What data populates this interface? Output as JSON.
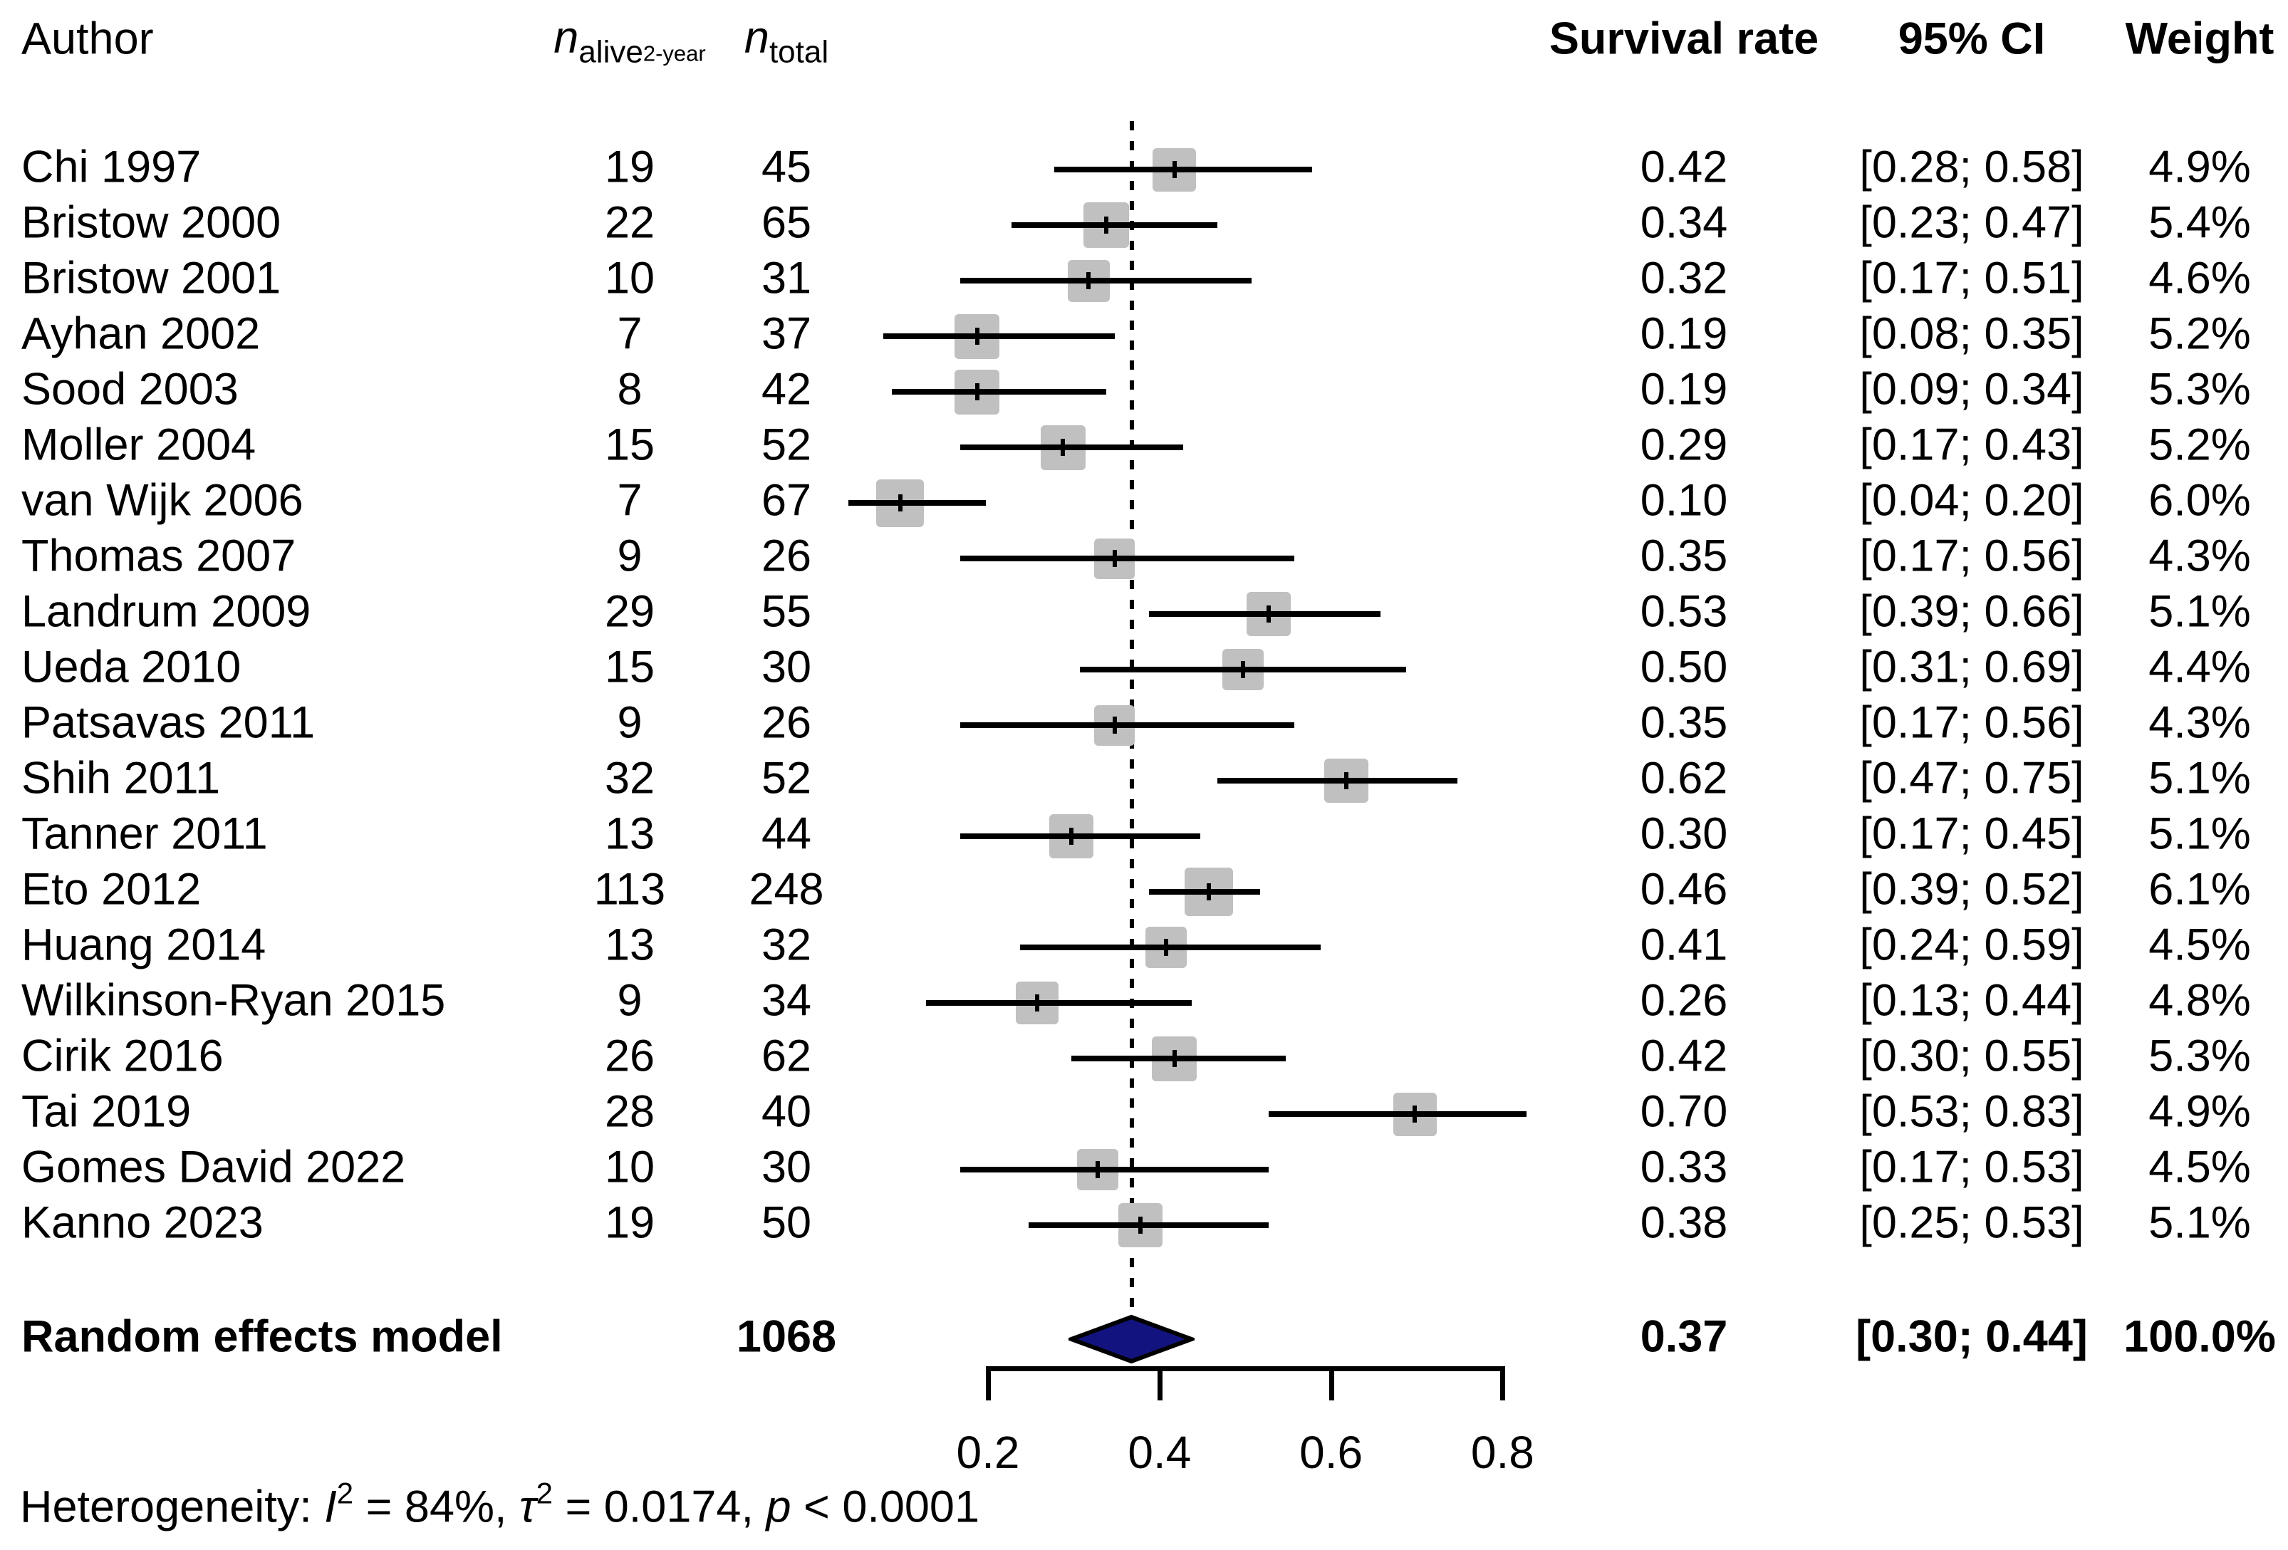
{
  "columns": {
    "author": "Author",
    "n_alive": {
      "base": "n",
      "sub": "alive",
      "subsub": "2-year"
    },
    "n_total": {
      "base": "n",
      "sub": "total"
    },
    "survival_rate": "Survival rate",
    "ci": "95% CI",
    "weight": "Weight"
  },
  "summary_row": {
    "label": "Random effects model",
    "n_total": "1068",
    "rate": "0.37",
    "ci": "[0.30; 0.44]",
    "weight": "100.0%"
  },
  "heterogeneity": {
    "prefix": "Heterogeneity: ",
    "i_sym": "I",
    "i_sup": "2",
    "i_rest": " = 84%, ",
    "tau_sym": "τ",
    "tau_sup": "2",
    "tau_rest": " = 0.0174, ",
    "p_sym": "p",
    "p_rest": " < 0.0001"
  },
  "colors": {
    "square": "#c0c0c0",
    "diamond_fill": "#131380",
    "diamond_stroke": "#000000",
    "line": "#000000",
    "text": "#000000"
  },
  "chart_data": {
    "type": "forest",
    "title": "",
    "xlabel": "",
    "axis": {
      "ticks": [
        0.2,
        0.4,
        0.6,
        0.8
      ],
      "tick_labels": [
        "0.2",
        "0.4",
        "0.6",
        "0.8"
      ],
      "plotted_range": [
        0.04,
        0.83
      ]
    },
    "reference_line_value": 0.37,
    "studies": [
      {
        "author": "Chi 1997",
        "n_alive": "19",
        "n_total": "45",
        "rate": 0.42,
        "ci_low": 0.28,
        "ci_high": 0.58,
        "rate_text": "0.42",
        "ci_text": "[0.28; 0.58]",
        "weight": 4.9,
        "weight_text": "4.9%"
      },
      {
        "author": "Bristow 2000",
        "n_alive": "22",
        "n_total": "65",
        "rate": 0.34,
        "ci_low": 0.23,
        "ci_high": 0.47,
        "rate_text": "0.34",
        "ci_text": "[0.23; 0.47]",
        "weight": 5.4,
        "weight_text": "5.4%"
      },
      {
        "author": "Bristow 2001",
        "n_alive": "10",
        "n_total": "31",
        "rate": 0.32,
        "ci_low": 0.17,
        "ci_high": 0.51,
        "rate_text": "0.32",
        "ci_text": "[0.17; 0.51]",
        "weight": 4.6,
        "weight_text": "4.6%"
      },
      {
        "author": "Ayhan 2002",
        "n_alive": "7",
        "n_total": "37",
        "rate": 0.19,
        "ci_low": 0.08,
        "ci_high": 0.35,
        "rate_text": "0.19",
        "ci_text": "[0.08; 0.35]",
        "weight": 5.2,
        "weight_text": "5.2%"
      },
      {
        "author": "Sood 2003",
        "n_alive": "8",
        "n_total": "42",
        "rate": 0.19,
        "ci_low": 0.09,
        "ci_high": 0.34,
        "rate_text": "0.19",
        "ci_text": "[0.09; 0.34]",
        "weight": 5.3,
        "weight_text": "5.3%"
      },
      {
        "author": "Moller 2004",
        "n_alive": "15",
        "n_total": "52",
        "rate": 0.29,
        "ci_low": 0.17,
        "ci_high": 0.43,
        "rate_text": "0.29",
        "ci_text": "[0.17; 0.43]",
        "weight": 5.2,
        "weight_text": "5.2%"
      },
      {
        "author": "van Wijk 2006",
        "n_alive": "7",
        "n_total": "67",
        "rate": 0.1,
        "ci_low": 0.04,
        "ci_high": 0.2,
        "rate_text": "0.10",
        "ci_text": "[0.04; 0.20]",
        "weight": 6.0,
        "weight_text": "6.0%"
      },
      {
        "author": "Thomas 2007",
        "n_alive": "9",
        "n_total": "26",
        "rate": 0.35,
        "ci_low": 0.17,
        "ci_high": 0.56,
        "rate_text": "0.35",
        "ci_text": "[0.17; 0.56]",
        "weight": 4.3,
        "weight_text": "4.3%"
      },
      {
        "author": "Landrum 2009",
        "n_alive": "29",
        "n_total": "55",
        "rate": 0.53,
        "ci_low": 0.39,
        "ci_high": 0.66,
        "rate_text": "0.53",
        "ci_text": "[0.39; 0.66]",
        "weight": 5.1,
        "weight_text": "5.1%"
      },
      {
        "author": "Ueda 2010",
        "n_alive": "15",
        "n_total": "30",
        "rate": 0.5,
        "ci_low": 0.31,
        "ci_high": 0.69,
        "rate_text": "0.50",
        "ci_text": "[0.31; 0.69]",
        "weight": 4.4,
        "weight_text": "4.4%"
      },
      {
        "author": "Patsavas 2011",
        "n_alive": "9",
        "n_total": "26",
        "rate": 0.35,
        "ci_low": 0.17,
        "ci_high": 0.56,
        "rate_text": "0.35",
        "ci_text": "[0.17; 0.56]",
        "weight": 4.3,
        "weight_text": "4.3%"
      },
      {
        "author": "Shih 2011",
        "n_alive": "32",
        "n_total": "52",
        "rate": 0.62,
        "ci_low": 0.47,
        "ci_high": 0.75,
        "rate_text": "0.62",
        "ci_text": "[0.47; 0.75]",
        "weight": 5.1,
        "weight_text": "5.1%"
      },
      {
        "author": "Tanner 2011",
        "n_alive": "13",
        "n_total": "44",
        "rate": 0.3,
        "ci_low": 0.17,
        "ci_high": 0.45,
        "rate_text": "0.30",
        "ci_text": "[0.17; 0.45]",
        "weight": 5.1,
        "weight_text": "5.1%"
      },
      {
        "author": "Eto 2012",
        "n_alive": "113",
        "n_total": "248",
        "rate": 0.46,
        "ci_low": 0.39,
        "ci_high": 0.52,
        "rate_text": "0.46",
        "ci_text": "[0.39; 0.52]",
        "weight": 6.1,
        "weight_text": "6.1%"
      },
      {
        "author": "Huang 2014",
        "n_alive": "13",
        "n_total": "32",
        "rate": 0.41,
        "ci_low": 0.24,
        "ci_high": 0.59,
        "rate_text": "0.41",
        "ci_text": "[0.24; 0.59]",
        "weight": 4.5,
        "weight_text": "4.5%"
      },
      {
        "author": "Wilkinson-Ryan 2015",
        "n_alive": "9",
        "n_total": "34",
        "rate": 0.26,
        "ci_low": 0.13,
        "ci_high": 0.44,
        "rate_text": "0.26",
        "ci_text": "[0.13; 0.44]",
        "weight": 4.8,
        "weight_text": "4.8%"
      },
      {
        "author": "Cirik 2016",
        "n_alive": "26",
        "n_total": "62",
        "rate": 0.42,
        "ci_low": 0.3,
        "ci_high": 0.55,
        "rate_text": "0.42",
        "ci_text": "[0.30; 0.55]",
        "weight": 5.3,
        "weight_text": "5.3%"
      },
      {
        "author": "Tai 2019",
        "n_alive": "28",
        "n_total": "40",
        "rate": 0.7,
        "ci_low": 0.53,
        "ci_high": 0.83,
        "rate_text": "0.70",
        "ci_text": "[0.53; 0.83]",
        "weight": 4.9,
        "weight_text": "4.9%"
      },
      {
        "author": "Gomes David 2022",
        "n_alive": "10",
        "n_total": "30",
        "rate": 0.33,
        "ci_low": 0.17,
        "ci_high": 0.53,
        "rate_text": "0.33",
        "ci_text": "[0.17; 0.53]",
        "weight": 4.5,
        "weight_text": "4.5%"
      },
      {
        "author": "Kanno 2023",
        "n_alive": "19",
        "n_total": "50",
        "rate": 0.38,
        "ci_low": 0.25,
        "ci_high": 0.53,
        "rate_text": "0.38",
        "ci_text": "[0.25; 0.53]",
        "weight": 5.1,
        "weight_text": "5.1%"
      }
    ],
    "pooled": {
      "model": "Random effects model",
      "n_total": 1068,
      "estimate": 0.37,
      "ci_low": 0.3,
      "ci_high": 0.44,
      "weight_text": "100.0%"
    },
    "heterogeneity_stats": {
      "I2": "84%",
      "tau2": "0.0174",
      "p": "< 0.0001"
    }
  }
}
